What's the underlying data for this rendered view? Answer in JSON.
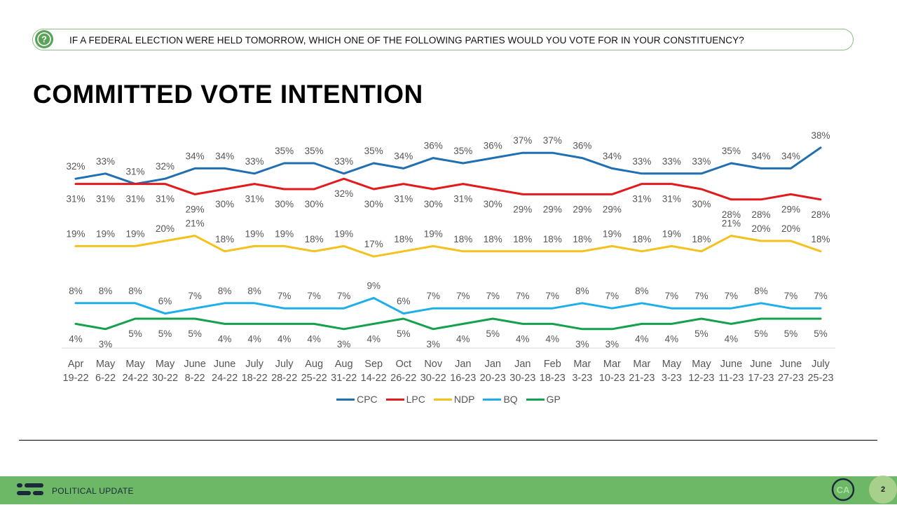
{
  "question": {
    "icon": "question-icon",
    "text": "IF A FEDERAL ELECTION WERE HELD TOMORROW, WHICH ONE OF THE FOLLOWING PARTIES WOULD YOU VOTE FOR IN YOUR CONSTITUENCY?"
  },
  "page_title": "COMMITTED VOTE INTENTION",
  "footer": {
    "logo_icon": "lines-logo-icon",
    "label": "POLITICAL UPDATE",
    "badge_text": "CA",
    "page_number": "2",
    "color": "#6db866"
  },
  "chart_data": {
    "type": "line",
    "categories": [
      [
        "Apr",
        "19-22"
      ],
      [
        "May",
        "6-22"
      ],
      [
        "May",
        "24-22"
      ],
      [
        "May",
        "30-22"
      ],
      [
        "June",
        "8-22"
      ],
      [
        "June",
        "24-22"
      ],
      [
        "July",
        "18-22"
      ],
      [
        "July",
        "28-22"
      ],
      [
        "Aug",
        "25-22"
      ],
      [
        "Aug",
        "31-22"
      ],
      [
        "Sep",
        "14-22"
      ],
      [
        "Oct",
        "26-22"
      ],
      [
        "Nov",
        "30-22"
      ],
      [
        "Jan",
        "16-23"
      ],
      [
        "Jan",
        "20-23"
      ],
      [
        "Jan",
        "30-23"
      ],
      [
        "Feb",
        "18-23"
      ],
      [
        "Mar",
        "3-23"
      ],
      [
        "Mar",
        "10-23"
      ],
      [
        "Mar",
        "21-23"
      ],
      [
        "May",
        "3-23"
      ],
      [
        "May",
        "12-23"
      ],
      [
        "June",
        "11-23"
      ],
      [
        "June",
        "17-23"
      ],
      [
        "June",
        "27-23"
      ],
      [
        "July",
        "25-23"
      ]
    ],
    "value_suffix": "%",
    "ylim": [
      0,
      40
    ],
    "grid": false,
    "legend_position": "bottom",
    "series": [
      {
        "name": "CPC",
        "color": "#1f6fb2",
        "label_pos": "above",
        "values": [
          32,
          33,
          31,
          32,
          34,
          34,
          33,
          35,
          35,
          33,
          35,
          34,
          36,
          35,
          36,
          37,
          37,
          36,
          34,
          33,
          33,
          33,
          35,
          34,
          34,
          38
        ]
      },
      {
        "name": "LPC",
        "color": "#e3191c",
        "label_pos": "below",
        "values": [
          31,
          31,
          31,
          31,
          29,
          30,
          31,
          30,
          30,
          32,
          30,
          31,
          30,
          31,
          30,
          29,
          29,
          29,
          29,
          31,
          31,
          30,
          28,
          28,
          29,
          28
        ]
      },
      {
        "name": "NDP",
        "color": "#f5c11c",
        "label_pos": "above",
        "values": [
          19,
          19,
          19,
          20,
          21,
          18,
          19,
          19,
          18,
          19,
          17,
          18,
          19,
          18,
          18,
          18,
          18,
          18,
          19,
          18,
          19,
          18,
          21,
          20,
          20,
          18
        ]
      },
      {
        "name": "BQ",
        "color": "#1eaee8",
        "label_pos": "above",
        "values": [
          8,
          8,
          8,
          6,
          7,
          8,
          8,
          7,
          7,
          7,
          9,
          6,
          7,
          7,
          7,
          7,
          7,
          8,
          7,
          8,
          7,
          7,
          7,
          8,
          7,
          7
        ]
      },
      {
        "name": "GP",
        "color": "#13a14b",
        "label_pos": "below",
        "values": [
          4,
          3,
          5,
          5,
          5,
          4,
          4,
          4,
          4,
          3,
          4,
          5,
          3,
          4,
          5,
          4,
          4,
          3,
          3,
          4,
          4,
          5,
          4,
          5,
          5,
          5
        ]
      }
    ]
  }
}
